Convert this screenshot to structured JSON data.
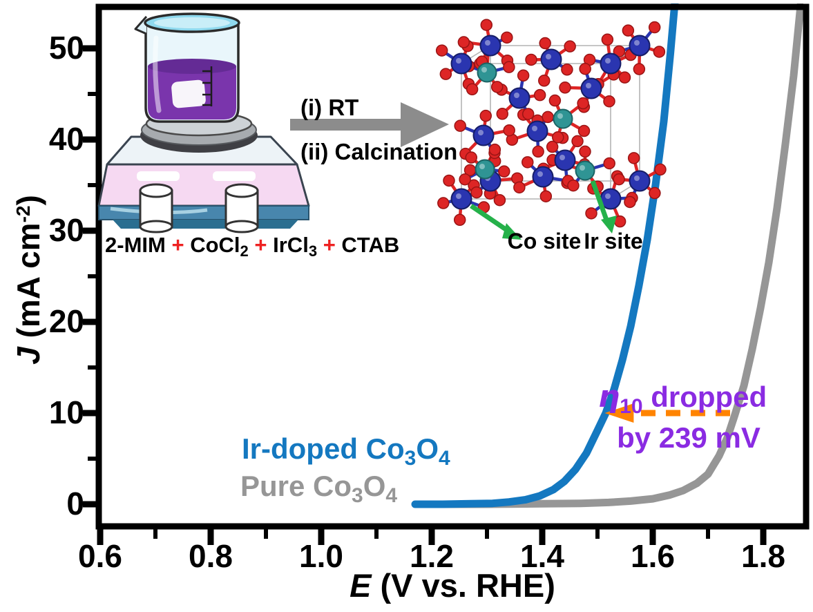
{
  "figure": {
    "background": "#ffffff",
    "frame_color": "#000000"
  },
  "scheme": {
    "reagents": {
      "r1": "2-MIM",
      "plus1": "+",
      "r2": "CoCl",
      "r2_sub": "2",
      "plus2": "+",
      "r3": "IrCl",
      "r3_sub": "3",
      "plus3": "+",
      "r4": "CTAB"
    },
    "steps": {
      "step1": "(i) RT",
      "step2": "(ii) Calcination"
    },
    "crystal": {
      "co_site_label": "Co site",
      "ir_site_label": "Ir site"
    },
    "colors": {
      "plus": "#ee2222",
      "reaction_arrow": "#8c8c8c",
      "site_arrow": "#25b14a",
      "co_atom": "#2a35b0",
      "ir_atom": "#2f9494",
      "o_atom": "#dd2525",
      "liquid": "#7a35ac",
      "hotplate_pink": "#f6d9f2",
      "hotplate_base_blue": "#4886ad"
    }
  },
  "axes": {
    "x_label_italic": "E",
    "x_label_rest": " (V vs. RHE)",
    "y_label_italic": "J",
    "y_label_pre": " (mA cm",
    "y_label_sup": "-2",
    "y_label_post": ")"
  },
  "legend": {
    "ir_doped": {
      "prefix": "Ir-doped Co",
      "sub1": "3",
      "mid": "O",
      "sub2": "4"
    },
    "pure": {
      "prefix": "Pure Co",
      "sub1": "3",
      "mid": "O",
      "sub2": "4"
    }
  },
  "chart_data": {
    "type": "line",
    "xlabel": "E (V vs. RHE)",
    "ylabel": "J (mA cm-2)",
    "xlim": [
      0.6,
      1.88
    ],
    "ylim": [
      -2,
      54.5
    ],
    "x_ticks": [
      0.6,
      0.8,
      1.0,
      1.2,
      1.4,
      1.6,
      1.8
    ],
    "x_tick_labels": [
      "0.6",
      "0.8",
      "1.0",
      "1.2",
      "1.4",
      "1.6",
      "1.8"
    ],
    "x_minor_ticks": [
      0.7,
      0.9,
      1.1,
      1.3,
      1.5,
      1.7
    ],
    "y_ticks": [
      0,
      10,
      20,
      30,
      40,
      50
    ],
    "y_tick_labels": [
      "0",
      "10",
      "20",
      "30",
      "40",
      "50"
    ],
    "y_minor_ticks": [
      5,
      15,
      25,
      35,
      45
    ],
    "grid": false,
    "series": [
      {
        "name": "Ir-doped Co3O4",
        "color": "#1478c0",
        "x": [
          1.17,
          1.22,
          1.27,
          1.31,
          1.34,
          1.37,
          1.395,
          1.42,
          1.44,
          1.46,
          1.48,
          1.5,
          1.515,
          1.53,
          1.545,
          1.56,
          1.575,
          1.59,
          1.605,
          1.62,
          1.632,
          1.64
        ],
        "y": [
          0.0,
          0.0,
          0.05,
          0.1,
          0.25,
          0.5,
          0.9,
          1.6,
          2.5,
          3.8,
          5.6,
          8.1,
          10.0,
          12.6,
          15.8,
          19.5,
          24.0,
          29.0,
          35.0,
          42.0,
          49.5,
          55.0
        ]
      },
      {
        "name": "Pure Co3O4",
        "color": "#969696",
        "x": [
          1.18,
          1.3,
          1.4,
          1.47,
          1.52,
          1.56,
          1.6,
          1.63,
          1.655,
          1.68,
          1.7,
          1.72,
          1.735,
          1.748,
          1.765,
          1.78,
          1.795,
          1.81,
          1.825,
          1.84,
          1.855,
          1.868
        ],
        "y": [
          0.0,
          0.0,
          0.05,
          0.1,
          0.2,
          0.35,
          0.6,
          1.0,
          1.5,
          2.3,
          3.3,
          5.3,
          7.3,
          9.7,
          13.0,
          17.0,
          21.5,
          26.5,
          32.5,
          39.5,
          47.0,
          55.0
        ]
      }
    ],
    "annotation": {
      "eta": "η",
      "eta_sub": "10",
      "line1_rest": " dropped",
      "line2": "by 239 mV",
      "color": "#8a2be2",
      "arrow_color": "#ff8400",
      "arrow_y": 10,
      "arrow_x_from": 1.74,
      "arrow_x_to": 1.525,
      "arrow_tip_x": 1.513
    }
  }
}
